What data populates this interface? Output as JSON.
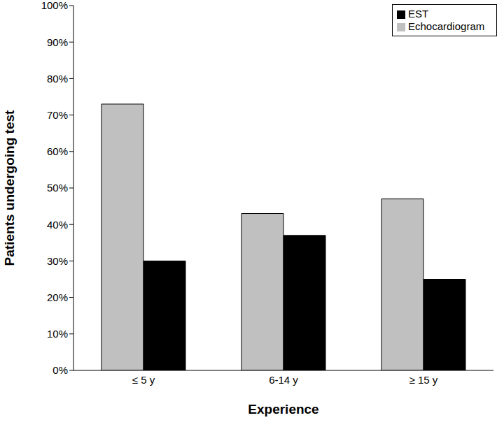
{
  "chart_data": {
    "type": "bar",
    "x_label": "Experience",
    "y_label": "Patients undergoing test",
    "categories": [
      "≤ 5 y",
      "6-14 y",
      "≥ 15 y"
    ],
    "series": [
      {
        "name": "Echocardiogram",
        "color": "#c0c0c0",
        "values": [
          73,
          43,
          47
        ]
      },
      {
        "name": "EST",
        "color": "#000000",
        "values": [
          30,
          37,
          25
        ]
      }
    ],
    "ylim": [
      0,
      100
    ],
    "yticks": [
      {
        "value": 0,
        "label": "0%"
      },
      {
        "value": 10,
        "label": "10%"
      },
      {
        "value": 20,
        "label": "20%"
      },
      {
        "value": 30,
        "label": "30%"
      },
      {
        "value": 40,
        "label": "40%"
      },
      {
        "value": 50,
        "label": "50%"
      },
      {
        "value": 60,
        "label": "60%"
      },
      {
        "value": 70,
        "label": "70%"
      },
      {
        "value": 80,
        "label": "80%"
      },
      {
        "value": 90,
        "label": "90%"
      },
      {
        "value": 100,
        "label": "100%"
      }
    ],
    "grid": false,
    "legend": "upper right"
  }
}
